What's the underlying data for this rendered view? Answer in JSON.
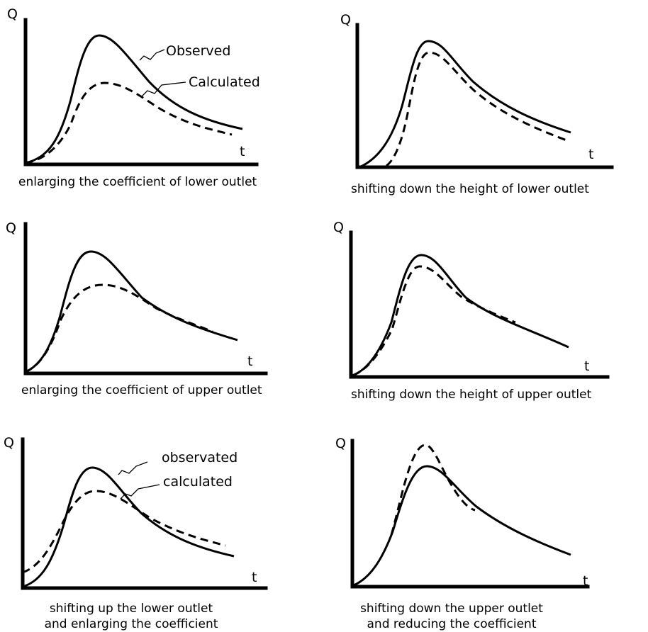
{
  "panels": [
    {
      "y_label": "Q",
      "x_label": "t",
      "caption": [
        "enlarging the coefficient of lower outlet"
      ],
      "legend": {
        "observed": "Observed",
        "calculated": "Calculated"
      }
    },
    {
      "y_label": "Q",
      "x_label": "t",
      "caption": [
        "shifting down the height of lower outlet"
      ]
    },
    {
      "y_label": "Q",
      "x_label": "t",
      "caption": [
        "enlarging the coefficient of upper outlet"
      ]
    },
    {
      "y_label": "Q",
      "x_label": "t",
      "caption": [
        "shifting down the height of upper outlet"
      ]
    },
    {
      "y_label": "Q",
      "x_label": "t",
      "caption": [
        "shifting up the lower outlet",
        "and enlarging the coefficient"
      ],
      "legend": {
        "observed": "observated",
        "calculated": "calculated"
      }
    },
    {
      "y_label": "Q",
      "x_label": "t",
      "caption": [
        "shifting down the upper outlet",
        "and reducing the coefficient"
      ]
    }
  ]
}
